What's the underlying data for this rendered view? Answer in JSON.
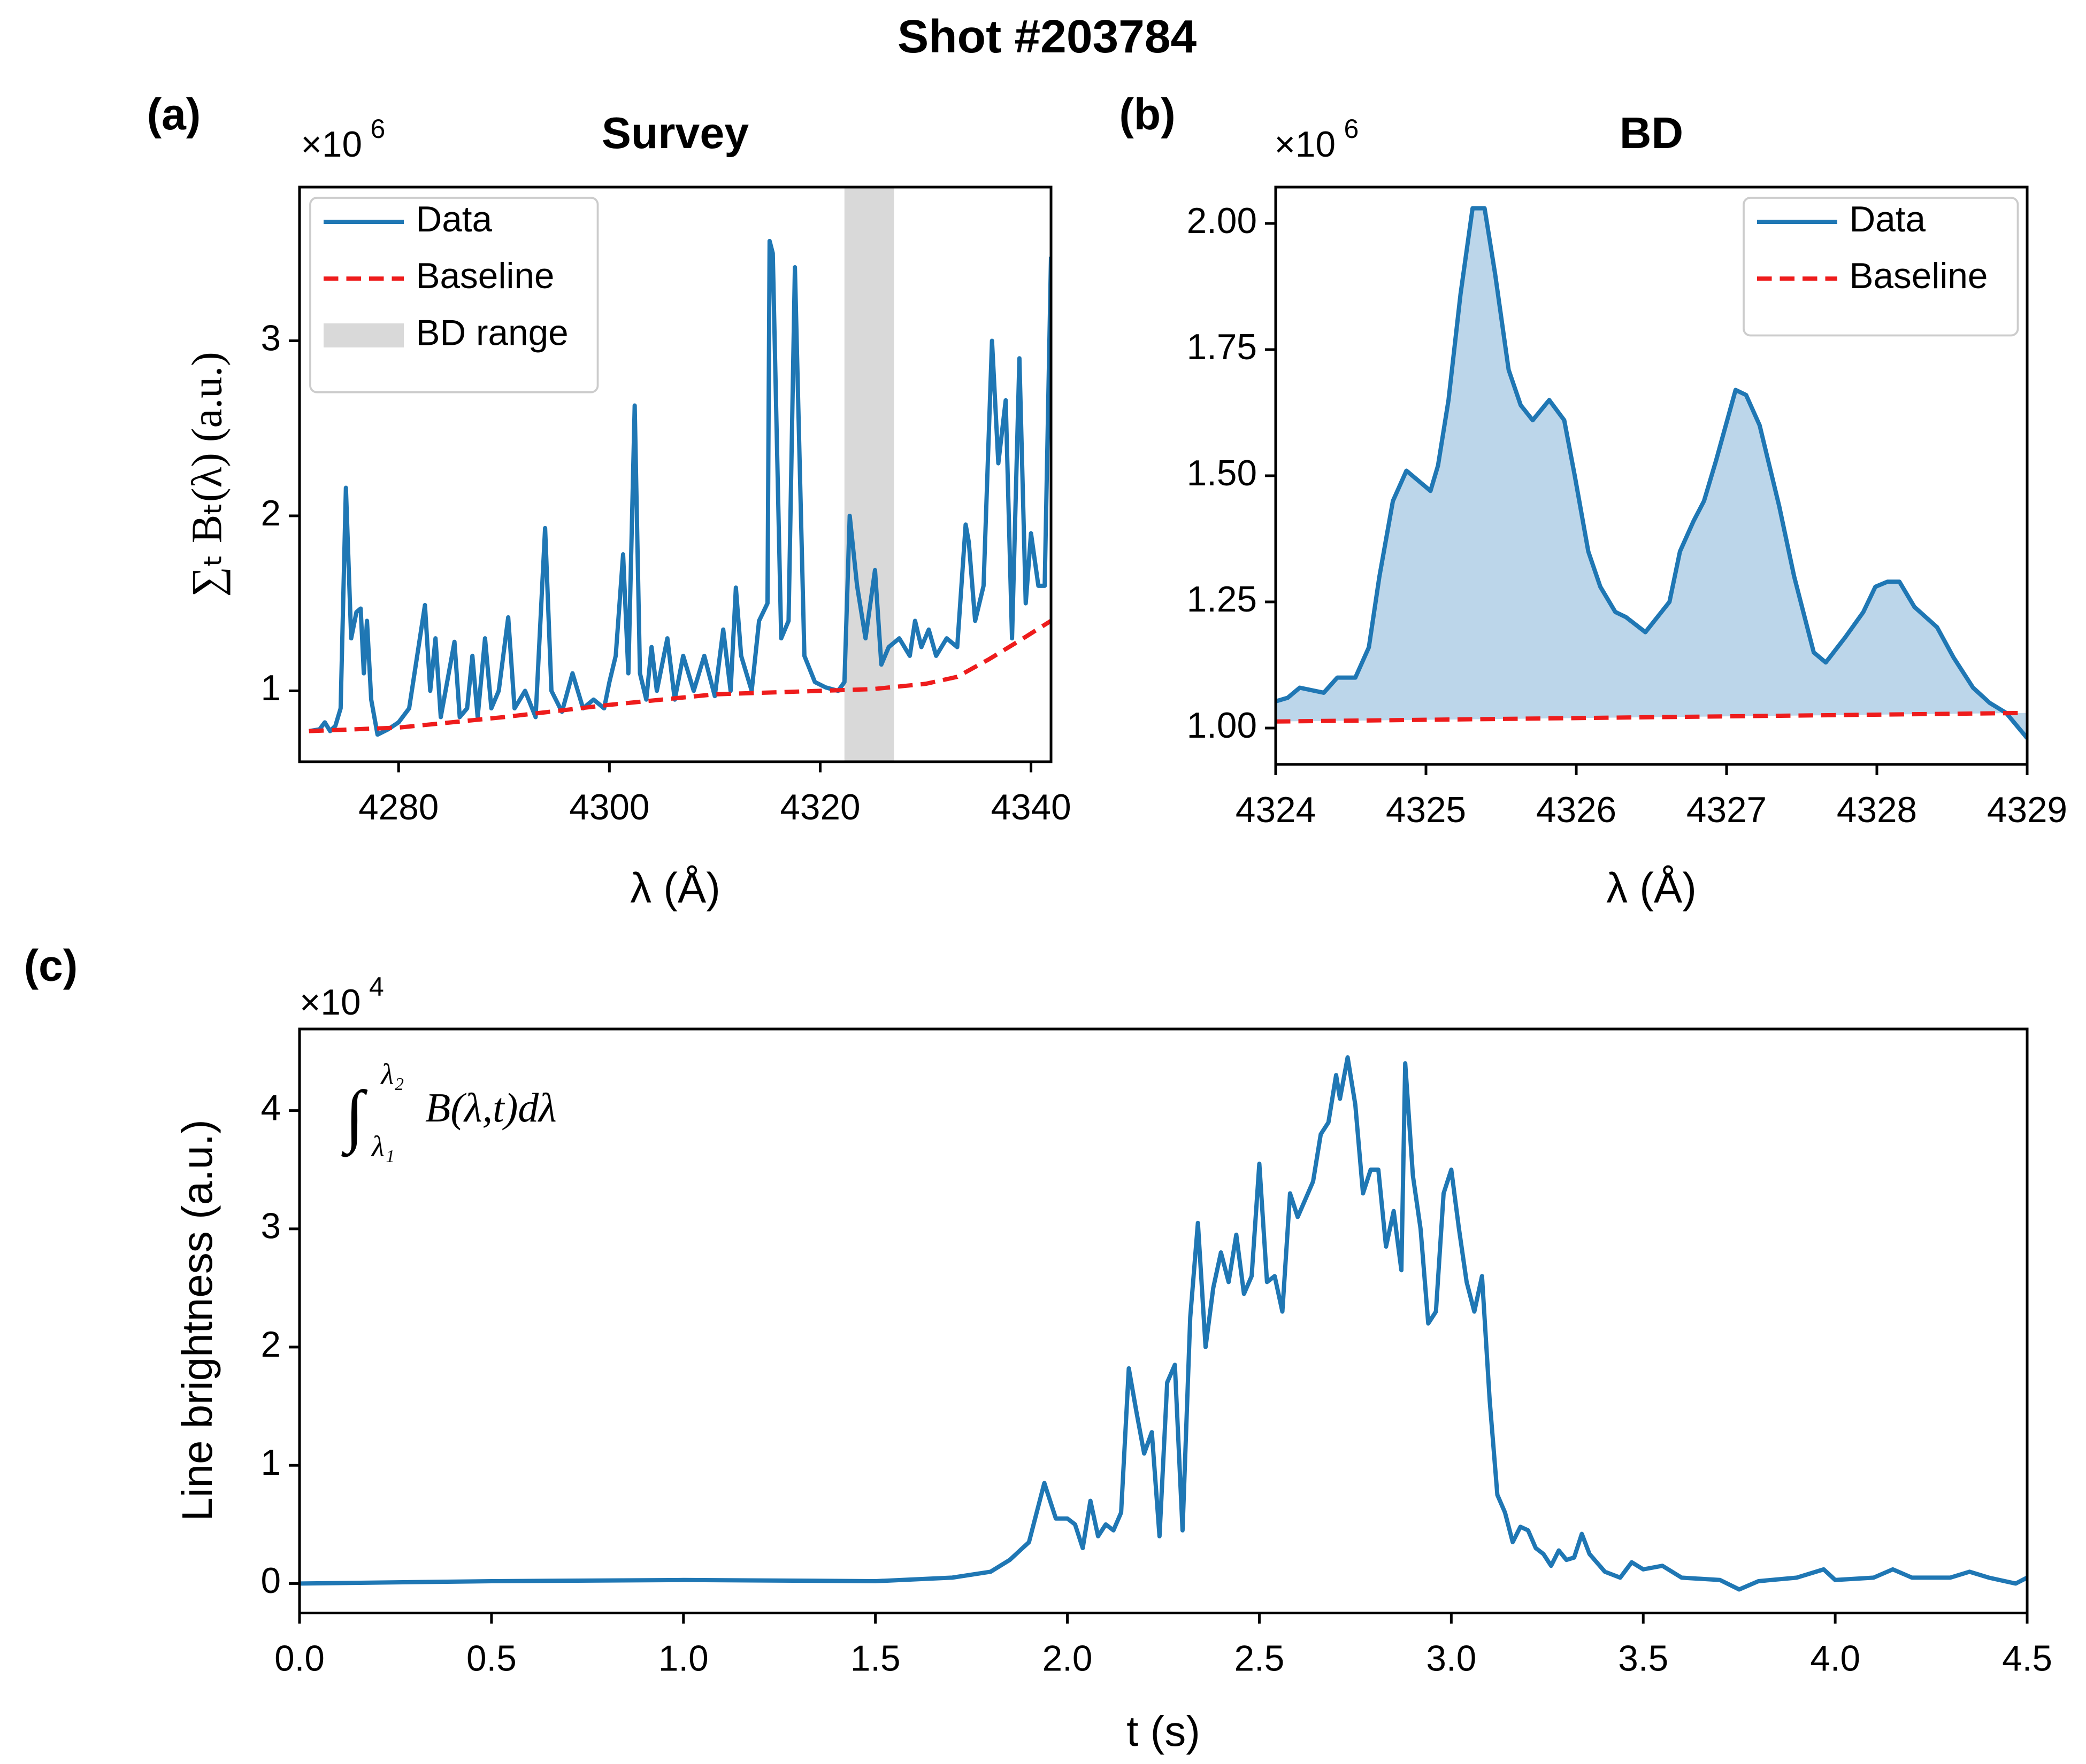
{
  "title": "Shot #203784",
  "chart_data": [
    {
      "type": "line",
      "panel_label": "(a)",
      "title": "Survey",
      "xlabel": "λ (Å)",
      "ylabel": "∑ₜ Bₜ(λ) (a.u.)",
      "offset_text": "×10",
      "offset_exp": "6",
      "xlim": [
        4270.6,
        4341.9
      ],
      "xticks": [
        4280,
        4300,
        4320,
        4340
      ],
      "ylim": [
        0.595,
        3.878
      ],
      "yticks": [
        1,
        2,
        3
      ],
      "legend": "upper left",
      "spans": [
        {
          "name": "BD range",
          "range": [
            4322.3,
            4327.0
          ],
          "color": "#d9d9d9"
        }
      ],
      "series": [
        {
          "name": "Data",
          "color": "#1f77b4",
          "style": "solid",
          "x": [
            4271.5,
            4272.5,
            4273.0,
            4273.5,
            4274.0,
            4274.5,
            4275.0,
            4275.5,
            4276.0,
            4276.4,
            4276.7,
            4277.0,
            4277.4,
            4278.0,
            4279.0,
            4280.0,
            4281.0,
            4282.5,
            4283.0,
            4283.5,
            4284.0,
            4285.3,
            4285.8,
            4286.5,
            4287.0,
            4287.5,
            4288.2,
            4288.8,
            4289.5,
            4290.4,
            4291.0,
            4292.0,
            4293.0,
            4293.9,
            4294.5,
            4295.5,
            4296.5,
            4297.5,
            4298.5,
            4299.5,
            4300.0,
            4300.6,
            4301.3,
            4301.8,
            4302.4,
            4302.9,
            4303.5,
            4304.0,
            4304.5,
            4305.5,
            4306.2,
            4307.0,
            4308.0,
            4309.0,
            4310.0,
            4310.8,
            4311.5,
            4312.0,
            4312.5,
            4313.5,
            4314.2,
            4315.0,
            4315.2,
            4315.5,
            4316.3,
            4317.0,
            4317.6,
            4318.5,
            4319.5,
            4320.5,
            4321.7,
            4322.3,
            4322.8,
            4323.5,
            4324.3,
            4325.2,
            4325.8,
            4326.5,
            4327.5,
            4328.5,
            4329.0,
            4329.6,
            4330.3,
            4331.0,
            4332.0,
            4333.0,
            4333.8,
            4334.1,
            4334.7,
            4335.5,
            4336.3,
            4336.9,
            4337.6,
            4338.2,
            4338.9,
            4339.5,
            4340.0,
            4340.7,
            4341.3,
            4341.9
          ],
          "values": [
            0.77,
            0.78,
            0.82,
            0.77,
            0.8,
            0.9,
            2.16,
            1.3,
            1.45,
            1.47,
            1.1,
            1.4,
            0.95,
            0.75,
            0.78,
            0.82,
            0.9,
            1.49,
            1.0,
            1.3,
            0.85,
            1.28,
            0.85,
            0.9,
            1.2,
            0.85,
            1.3,
            0.9,
            1.0,
            1.42,
            0.9,
            1.0,
            0.85,
            1.93,
            1.0,
            0.88,
            1.1,
            0.9,
            0.95,
            0.9,
            1.05,
            1.2,
            1.78,
            1.1,
            2.63,
            1.1,
            0.95,
            1.25,
            1.0,
            1.3,
            0.95,
            1.2,
            1.0,
            1.2,
            0.97,
            1.35,
            1.0,
            1.59,
            1.2,
            1.0,
            1.4,
            1.5,
            3.57,
            3.5,
            1.3,
            1.4,
            3.42,
            1.2,
            1.05,
            1.02,
            1.0,
            1.05,
            2.0,
            1.6,
            1.3,
            1.69,
            1.15,
            1.25,
            1.3,
            1.2,
            1.4,
            1.25,
            1.35,
            1.2,
            1.3,
            1.25,
            1.95,
            1.85,
            1.4,
            1.6,
            3.0,
            2.3,
            2.66,
            1.3,
            2.9,
            1.5,
            1.9,
            1.6,
            1.6,
            3.48
          ]
        },
        {
          "name": "Baseline",
          "color": "#ee1c1c",
          "style": "dashed",
          "x": [
            4271.5,
            4280,
            4290,
            4300,
            4310,
            4320,
            4325,
            4330,
            4333,
            4336,
            4339,
            4341.9
          ],
          "values": [
            0.77,
            0.79,
            0.85,
            0.92,
            0.98,
            1.0,
            1.01,
            1.04,
            1.08,
            1.18,
            1.29,
            1.4
          ]
        }
      ]
    },
    {
      "type": "line",
      "panel_label": "(b)",
      "title": "BD",
      "xlabel": "λ (Å)",
      "offset_text": "×10",
      "offset_exp": "6",
      "xlim": [
        4324,
        4329
      ],
      "xticks": [
        4324,
        4325,
        4326,
        4327,
        4328,
        4329
      ],
      "ylim": [
        0.928,
        2.072
      ],
      "yticks": [
        {
          "value": 1,
          "label": "1.00"
        },
        1.25,
        {
          "value": 1.5,
          "label": "1.50"
        },
        1.75,
        {
          "value": 2,
          "label": "2.00"
        }
      ],
      "legend": "upper right",
      "fill_color": "#bcd6ea",
      "series": [
        {
          "name": "Data",
          "color": "#1f77b4",
          "style": "solid",
          "x": [
            4324.0,
            4324.08,
            4324.16,
            4324.32,
            4324.41,
            4324.53,
            4324.62,
            4324.69,
            4324.78,
            4324.87,
            4325.03,
            4325.08,
            4325.15,
            4325.23,
            4325.31,
            4325.39,
            4325.46,
            4325.55,
            4325.63,
            4325.71,
            4325.82,
            4325.92,
            4325.99,
            4326.08,
            4326.16,
            4326.26,
            4326.33,
            4326.46,
            4326.62,
            4326.69,
            4326.78,
            4326.85,
            4326.93,
            4327.06,
            4327.13,
            4327.22,
            4327.35,
            4327.45,
            4327.58,
            4327.66,
            4327.79,
            4327.91,
            4327.99,
            4328.07,
            4328.15,
            4328.25,
            4328.4,
            4328.51,
            4328.64,
            4328.75,
            4328.86,
            4329.0
          ],
          "values": [
            1.053,
            1.06,
            1.08,
            1.07,
            1.1,
            1.1,
            1.16,
            1.3,
            1.45,
            1.51,
            1.47,
            1.52,
            1.65,
            1.86,
            2.03,
            2.03,
            1.9,
            1.71,
            1.64,
            1.61,
            1.65,
            1.61,
            1.5,
            1.35,
            1.28,
            1.23,
            1.22,
            1.19,
            1.25,
            1.35,
            1.41,
            1.45,
            1.53,
            1.67,
            1.66,
            1.6,
            1.44,
            1.3,
            1.15,
            1.13,
            1.18,
            1.23,
            1.28,
            1.29,
            1.29,
            1.24,
            1.2,
            1.14,
            1.08,
            1.05,
            1.03,
            0.98
          ]
        },
        {
          "name": "Baseline",
          "color": "#ee1c1c",
          "style": "dashed",
          "x": [
            4324,
            4329
          ],
          "values": [
            1.013,
            1.03
          ]
        }
      ]
    },
    {
      "type": "line",
      "panel_label": "(c)",
      "xlabel": "t (s)",
      "ylabel": "Line brightness (a.u.)",
      "offset_text": "×10",
      "offset_exp": "4",
      "annotation": {
        "integral": "∫",
        "upper": "λ₂",
        "lower": "λ₁",
        "body": "B(λ,t)dλ"
      },
      "xlim": [
        0,
        4.5
      ],
      "xticks": [
        {
          "value": 0,
          "label": "0.0"
        },
        0.5,
        {
          "value": 1,
          "label": "1.0"
        },
        1.5,
        {
          "value": 2,
          "label": "2.0"
        },
        2.5,
        {
          "value": 3,
          "label": "3.0"
        },
        3.5,
        {
          "value": 4,
          "label": "4.0"
        },
        4.5
      ],
      "ylim": [
        -0.249,
        4.69
      ],
      "yticks": [
        0,
        1,
        2,
        3,
        4
      ],
      "series": [
        {
          "name": "Line brightness",
          "color": "#1f77b4",
          "style": "solid",
          "x": [
            0,
            0.5,
            1.0,
            1.5,
            1.7,
            1.8,
            1.85,
            1.9,
            1.94,
            1.97,
            2.0,
            2.02,
            2.04,
            2.06,
            2.08,
            2.1,
            2.12,
            2.14,
            2.16,
            2.18,
            2.2,
            2.22,
            2.24,
            2.26,
            2.28,
            2.3,
            2.32,
            2.34,
            2.36,
            2.38,
            2.4,
            2.42,
            2.44,
            2.46,
            2.48,
            2.5,
            2.52,
            2.54,
            2.56,
            2.58,
            2.6,
            2.62,
            2.64,
            2.66,
            2.68,
            2.7,
            2.71,
            2.73,
            2.75,
            2.77,
            2.79,
            2.81,
            2.83,
            2.85,
            2.87,
            2.88,
            2.9,
            2.92,
            2.94,
            2.96,
            2.98,
            3.0,
            3.02,
            3.04,
            3.06,
            3.08,
            3.1,
            3.12,
            3.14,
            3.16,
            3.18,
            3.2,
            3.22,
            3.24,
            3.26,
            3.28,
            3.3,
            3.32,
            3.34,
            3.36,
            3.4,
            3.44,
            3.47,
            3.5,
            3.55,
            3.6,
            3.7,
            3.75,
            3.8,
            3.9,
            3.97,
            4.0,
            4.1,
            4.15,
            4.2,
            4.3,
            4.35,
            4.4,
            4.47,
            4.5
          ],
          "values": [
            0.0,
            0.02,
            0.03,
            0.02,
            0.05,
            0.1,
            0.2,
            0.35,
            0.85,
            0.55,
            0.55,
            0.5,
            0.3,
            0.7,
            0.4,
            0.5,
            0.45,
            0.6,
            1.82,
            1.45,
            1.1,
            1.28,
            0.4,
            1.7,
            1.85,
            0.45,
            2.25,
            3.05,
            2.0,
            2.5,
            2.8,
            2.55,
            2.95,
            2.45,
            2.6,
            3.55,
            2.55,
            2.6,
            2.3,
            3.3,
            3.1,
            3.25,
            3.4,
            3.8,
            3.9,
            4.3,
            4.1,
            4.45,
            4.05,
            3.3,
            3.5,
            3.5,
            2.85,
            3.15,
            2.65,
            4.4,
            3.45,
            3.0,
            2.2,
            2.3,
            3.3,
            3.5,
            3.0,
            2.55,
            2.3,
            2.6,
            1.55,
            0.75,
            0.6,
            0.35,
            0.48,
            0.45,
            0.3,
            0.25,
            0.15,
            0.28,
            0.2,
            0.22,
            0.42,
            0.25,
            0.1,
            0.05,
            0.18,
            0.12,
            0.15,
            0.05,
            0.03,
            -0.05,
            0.02,
            0.05,
            0.12,
            0.03,
            0.05,
            0.12,
            0.05,
            0.05,
            0.1,
            0.05,
            0.0,
            0.05
          ]
        }
      ]
    }
  ]
}
